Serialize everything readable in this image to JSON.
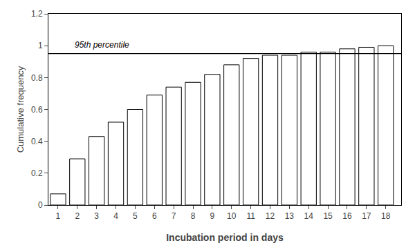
{
  "chart_data": {
    "type": "bar",
    "x": [
      1,
      2,
      3,
      4,
      5,
      6,
      7,
      8,
      9,
      10,
      11,
      12,
      13,
      14,
      15,
      16,
      17,
      18
    ],
    "values": [
      0.07,
      0.29,
      0.43,
      0.52,
      0.6,
      0.69,
      0.74,
      0.77,
      0.82,
      0.88,
      0.92,
      0.94,
      0.94,
      0.96,
      0.96,
      0.98,
      0.99,
      1.0
    ],
    "color": "white",
    "xlabel": "Incubation period in days",
    "ylabel": "Cumulative frequency",
    "xlim": [
      0.5,
      18.8
    ],
    "xticks": [
      1,
      2,
      3,
      4,
      5,
      6,
      7,
      8,
      9,
      10,
      11,
      12,
      13,
      14,
      15,
      16,
      17,
      18
    ],
    "ylim": [
      0,
      1.2
    ],
    "yticks": [
      0,
      0.2,
      0.4,
      0.6,
      0.8,
      1,
      1.2
    ],
    "grid": false,
    "annotations": [
      {
        "text": "95th percentile",
        "y": 0.95
      }
    ]
  }
}
